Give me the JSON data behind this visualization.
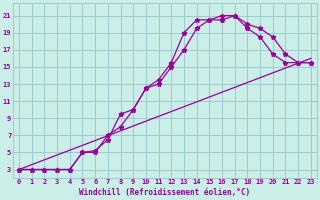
{
  "xlabel": "Windchill (Refroidissement éolien,°C)",
  "bg_color": "#cceee8",
  "grid_color": "#99cccc",
  "line_color": "#990099",
  "xlim": [
    -0.5,
    23.5
  ],
  "ylim": [
    2,
    22.5
  ],
  "xticks": [
    0,
    1,
    2,
    3,
    4,
    5,
    6,
    7,
    8,
    9,
    10,
    11,
    12,
    13,
    14,
    15,
    16,
    17,
    18,
    19,
    20,
    21,
    22,
    23
  ],
  "yticks": [
    3,
    5,
    7,
    9,
    11,
    13,
    15,
    17,
    19,
    21
  ],
  "curve1_x": [
    0,
    1,
    2,
    3,
    4,
    5,
    6,
    7,
    8,
    9,
    10,
    11,
    12,
    13,
    14,
    15,
    16,
    17,
    18,
    19,
    20,
    21,
    22,
    23
  ],
  "curve1_y": [
    3,
    3,
    3,
    3,
    3,
    5,
    5,
    7,
    8,
    10,
    12.5,
    13,
    15,
    17,
    19.5,
    20.5,
    21,
    21,
    20,
    19.5,
    18.5,
    16.5,
    15.5,
    15.5
  ],
  "curve2_x": [
    0,
    1,
    2,
    3,
    4,
    5,
    6,
    7,
    8,
    9,
    10,
    11,
    12,
    13,
    14,
    15,
    16,
    17,
    18,
    19,
    20,
    21,
    22,
    23
  ],
  "curve2_y": [
    3,
    3,
    3,
    3,
    3,
    5,
    5.2,
    6.5,
    9.5,
    10,
    12.5,
    13.5,
    15.5,
    19,
    20.5,
    20.5,
    20.5,
    21,
    19.5,
    18.5,
    16.5,
    15.5,
    15.5,
    15.5
  ],
  "curve3_x": [
    0,
    23
  ],
  "curve3_y": [
    3,
    16
  ],
  "marker": "*",
  "markersize": 3.5,
  "linewidth": 0.9,
  "xlabel_fontsize": 5.5,
  "tick_fontsize": 5
}
